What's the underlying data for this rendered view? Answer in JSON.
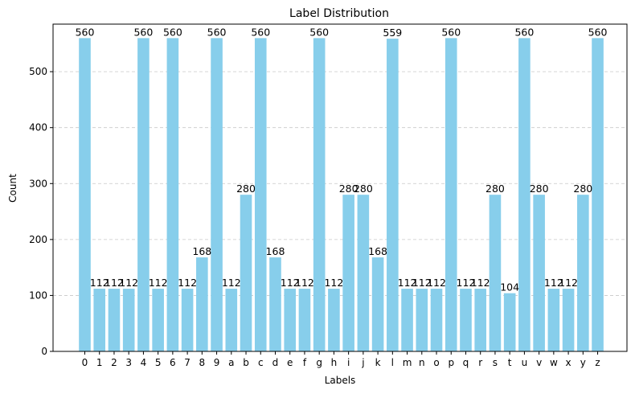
{
  "chart_data": {
    "type": "bar",
    "title": "Label Distribution",
    "xlabel": "Labels",
    "ylabel": "Count",
    "categories": [
      "0",
      "1",
      "2",
      "3",
      "4",
      "5",
      "6",
      "7",
      "8",
      "9",
      "a",
      "b",
      "c",
      "d",
      "e",
      "f",
      "g",
      "h",
      "i",
      "j",
      "k",
      "l",
      "m",
      "n",
      "o",
      "p",
      "q",
      "r",
      "s",
      "t",
      "u",
      "v",
      "w",
      "x",
      "y",
      "z"
    ],
    "values": [
      560,
      112,
      112,
      112,
      560,
      112,
      560,
      112,
      168,
      560,
      112,
      280,
      560,
      168,
      112,
      112,
      560,
      112,
      280,
      280,
      168,
      559,
      112,
      112,
      112,
      560,
      112,
      112,
      280,
      104,
      560,
      280,
      112,
      112,
      280,
      560
    ],
    "ylim": [
      0,
      585
    ],
    "yticks": [
      0,
      100,
      200,
      300,
      400,
      500
    ],
    "grid": "y-dashed",
    "bar_color": "#87ceeb",
    "show_data_labels": true
  }
}
